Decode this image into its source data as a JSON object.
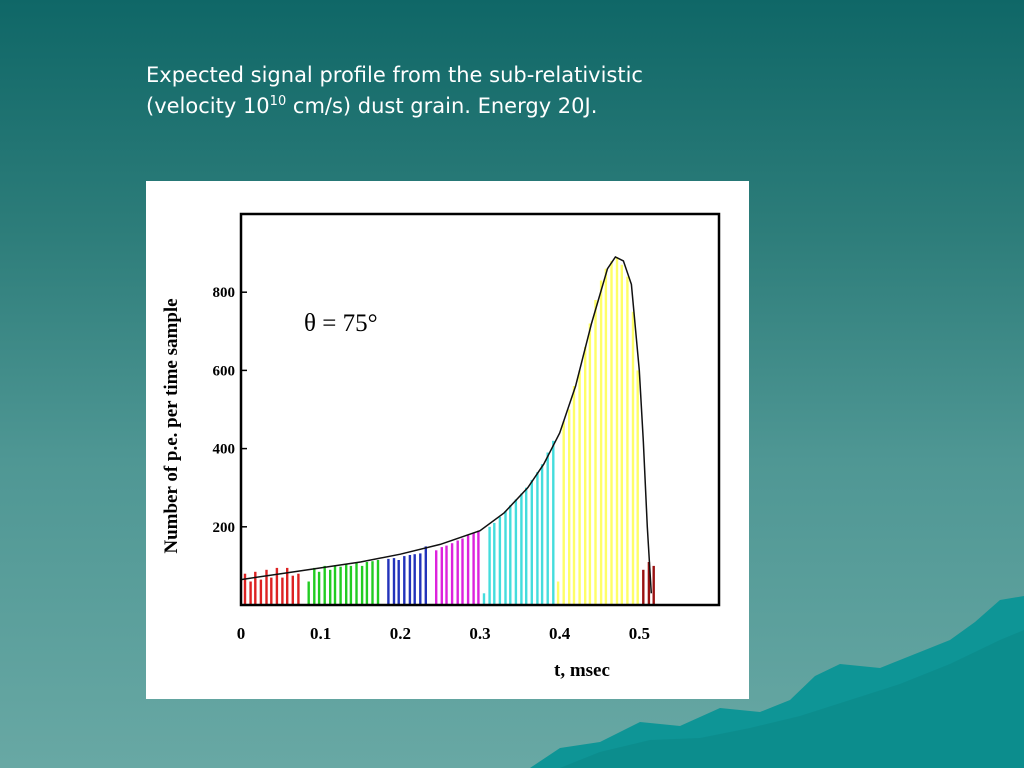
{
  "slide": {
    "caption_line1": "Expected signal profile from the sub-relativistic",
    "caption_line2_pre": "(velocity 10",
    "caption_sup": "10",
    "caption_line2_post": " cm/s) dust grain. Energy 20J."
  },
  "colors": {
    "background_top": "#0f6767",
    "background_bottom": "#68a8a4",
    "mountains": "#0e9596",
    "caption_text": "#ffffff"
  },
  "chart_data": {
    "type": "bar",
    "title": "",
    "annotation": "θ = 75°",
    "xlabel": "t, msec",
    "ylabel": "Number of p.e. per time sample",
    "xlim": [
      0,
      0.6
    ],
    "ylim": [
      0,
      1000
    ],
    "x_ticks": [
      "0",
      "0.1",
      "0.2",
      "0.3",
      "0.4",
      "0.5"
    ],
    "y_ticks": [
      "200",
      "400",
      "600",
      "800"
    ],
    "grid": false,
    "legend": "none",
    "bin_width_msec": 0.00667,
    "envelope": {
      "x": [
        0,
        0.05,
        0.1,
        0.15,
        0.2,
        0.25,
        0.3,
        0.33,
        0.36,
        0.38,
        0.4,
        0.42,
        0.44,
        0.46,
        0.47,
        0.48,
        0.49,
        0.5,
        0.505,
        0.51,
        0.515
      ],
      "y": [
        65,
        80,
        95,
        110,
        130,
        155,
        190,
        235,
        300,
        360,
        440,
        560,
        720,
        860,
        890,
        880,
        820,
        600,
        420,
        200,
        30
      ]
    },
    "series": [
      {
        "color": "#dd2222",
        "x": [
          0.005,
          0.012,
          0.018,
          0.025,
          0.032,
          0.038,
          0.045,
          0.052,
          0.058,
          0.065,
          0.072
        ],
        "values": [
          80,
          60,
          85,
          65,
          90,
          70,
          95,
          70,
          95,
          75,
          80
        ]
      },
      {
        "color": "#22cc22",
        "x": [
          0.085,
          0.092,
          0.098,
          0.105,
          0.112,
          0.118,
          0.125,
          0.132,
          0.138,
          0.145,
          0.152,
          0.158,
          0.165,
          0.172
        ],
        "values": [
          60,
          95,
          85,
          100,
          90,
          100,
          98,
          105,
          100,
          108,
          100,
          110,
          112,
          115
        ]
      },
      {
        "color": "#2233bb",
        "x": [
          0.185,
          0.192,
          0.198,
          0.205,
          0.212,
          0.218,
          0.225,
          0.232
        ],
        "values": [
          118,
          120,
          115,
          125,
          128,
          130,
          132,
          150
        ]
      },
      {
        "color": "#dd22dd",
        "x": [
          0.245,
          0.252,
          0.258,
          0.265,
          0.272,
          0.278,
          0.285,
          0.292,
          0.298
        ],
        "values": [
          140,
          148,
          152,
          158,
          165,
          170,
          178,
          185,
          190
        ]
      },
      {
        "color": "#44dddd",
        "x": [
          0.305,
          0.312,
          0.318,
          0.325,
          0.332,
          0.338,
          0.345,
          0.352,
          0.358,
          0.365,
          0.372,
          0.378,
          0.385,
          0.392
        ],
        "values": [
          30,
          200,
          210,
          225,
          240,
          255,
          270,
          285,
          300,
          320,
          340,
          360,
          390,
          420
        ]
      },
      {
        "color": "#ffff66",
        "x": [
          0.398,
          0.405,
          0.412,
          0.418,
          0.425,
          0.432,
          0.438,
          0.445,
          0.452,
          0.458,
          0.465,
          0.472,
          0.478,
          0.485,
          0.492,
          0.498
        ],
        "values": [
          60,
          470,
          500,
          560,
          600,
          660,
          720,
          780,
          830,
          860,
          880,
          890,
          870,
          840,
          750,
          600
        ]
      },
      {
        "color": "#991111",
        "x": [
          0.505,
          0.512,
          0.518
        ],
        "values": [
          90,
          110,
          100
        ]
      }
    ]
  }
}
